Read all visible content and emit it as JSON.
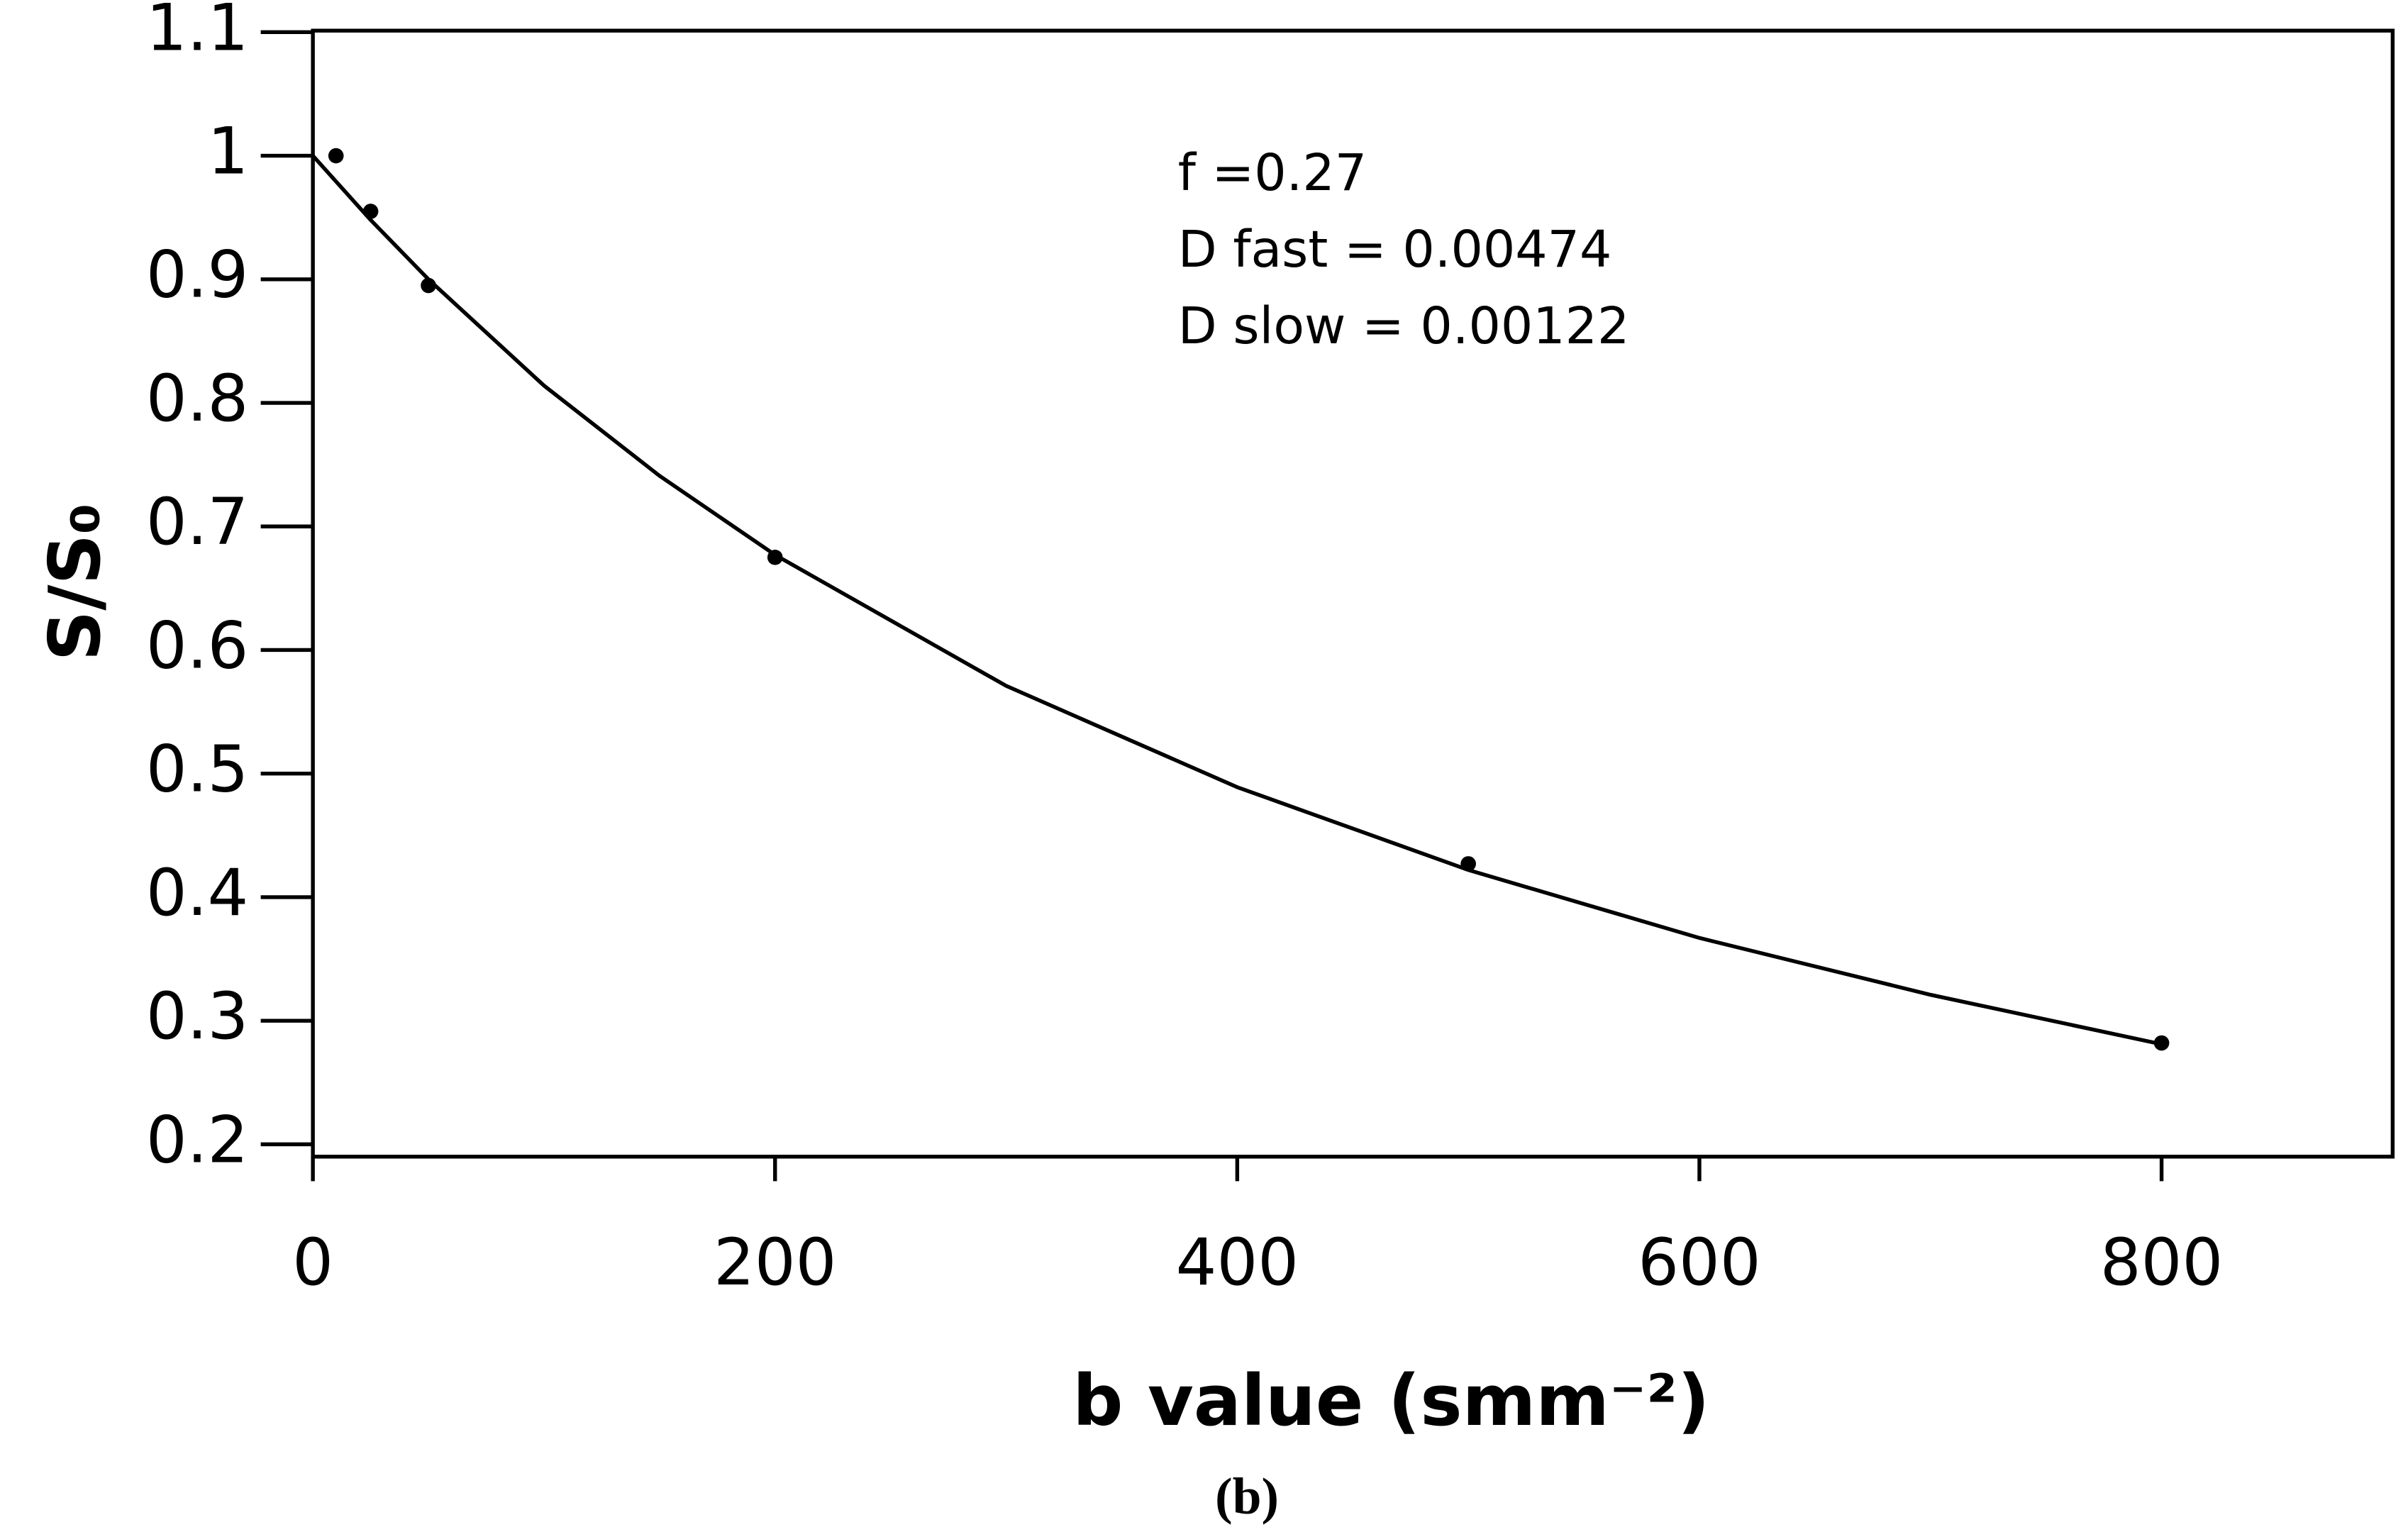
{
  "chart_data": {
    "type": "scatter",
    "ylabel": "S/S₀",
    "xlabel": "b value (smm⁻²)",
    "caption": "(b)",
    "annotations": [
      "f =0.27",
      "D fast = 0.00474",
      "D slow = 0.00122"
    ],
    "xlim": [
      0,
      900
    ],
    "xticks": [
      0,
      200,
      400,
      600,
      800
    ],
    "ylim": [
      0.19,
      1.1
    ],
    "yticks": [
      0.2,
      0.3,
      0.4,
      0.5,
      0.6,
      0.7,
      0.8,
      0.9,
      1,
      1.1
    ],
    "series": [
      {
        "style": "points",
        "color": "#000000",
        "x": [
          10,
          25,
          50,
          200,
          500,
          800
        ],
        "values": [
          1.0,
          0.955,
          0.895,
          0.675,
          0.427,
          0.282
        ]
      },
      {
        "style": "line",
        "color": "#000000",
        "x": [
          0,
          25,
          50,
          100,
          150,
          200,
          300,
          400,
          500,
          600,
          700,
          800
        ],
        "values": [
          1.0,
          0.948,
          0.9,
          0.814,
          0.741,
          0.677,
          0.571,
          0.489,
          0.422,
          0.367,
          0.321,
          0.281
        ]
      }
    ]
  }
}
